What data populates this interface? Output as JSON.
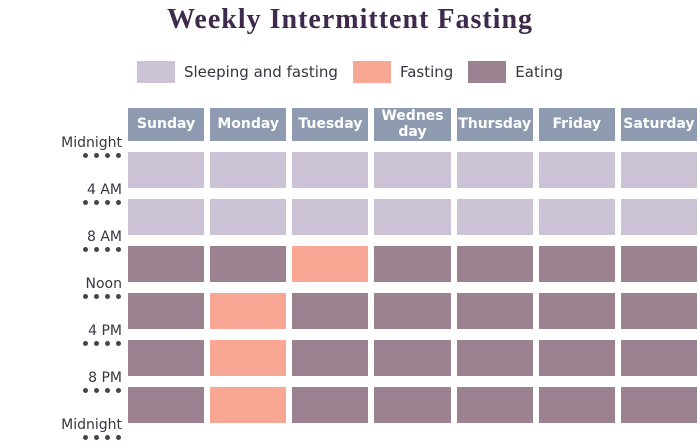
{
  "title": "Weekly Intermittent Fasting",
  "colors": {
    "background": "#FFFFFF",
    "title_text": "#3D2A4D",
    "header_bg": "#8D9AAF",
    "header_text": "#FFFFFF",
    "label_text": "#3A3440",
    "dot": "#4B424B",
    "sleeping": "#CBC2D5",
    "fasting": "#F9A795",
    "eating": "#9C8290"
  },
  "legend": {
    "items": [
      {
        "label": "Sleeping and fasting",
        "state": "sleeping"
      },
      {
        "label": "Fasting",
        "state": "fasting"
      },
      {
        "label": "Eating",
        "state": "eating"
      }
    ]
  },
  "chart_data": {
    "type": "heatmap",
    "title": "Weekly Intermittent Fasting",
    "columns": [
      "Sunday",
      "Monday",
      "Tuesday",
      "Wednes day",
      "Thursday",
      "Friday",
      "Saturday"
    ],
    "row_boundaries": [
      "Midnight",
      "4 AM",
      "8 AM",
      "Noon",
      "4 PM",
      "8 PM",
      "Midnight"
    ],
    "row_intervals": [
      "Midnight-4 AM",
      "4 AM-8 AM",
      "8 AM-Noon",
      "Noon-4 PM",
      "4 PM-8 PM",
      "8 PM-Midnight"
    ],
    "legend": [
      "Sleeping and fasting",
      "Fasting",
      "Eating"
    ],
    "matrix": [
      [
        "sleeping",
        "sleeping",
        "sleeping",
        "sleeping",
        "sleeping",
        "sleeping",
        "sleeping"
      ],
      [
        "sleeping",
        "sleeping",
        "sleeping",
        "sleeping",
        "sleeping",
        "sleeping",
        "sleeping"
      ],
      [
        "eating",
        "eating",
        "fasting",
        "eating",
        "eating",
        "eating",
        "eating"
      ],
      [
        "eating",
        "fasting",
        "eating",
        "eating",
        "eating",
        "eating",
        "eating"
      ],
      [
        "eating",
        "fasting",
        "eating",
        "eating",
        "eating",
        "eating",
        "eating"
      ],
      [
        "eating",
        "fasting",
        "eating",
        "eating",
        "eating",
        "eating",
        "eating"
      ]
    ]
  }
}
